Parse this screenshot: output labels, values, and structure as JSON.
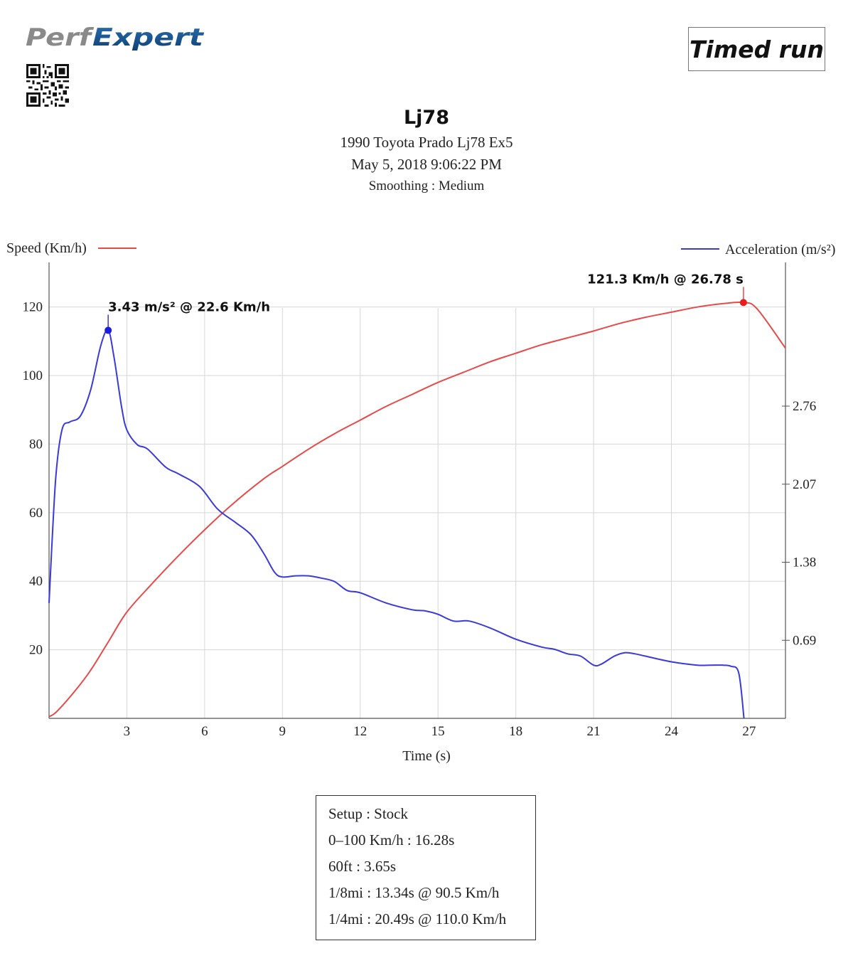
{
  "header": {
    "logo_text": "PerfExpert",
    "badge": "Timed run",
    "title": "Lj78",
    "vehicle": "1990 Toyota Prado Lj78 Ex5",
    "datetime": "May 5, 2018 9:06:22 PM",
    "smoothing": "Smoothing : Medium"
  },
  "chart_data": {
    "type": "line",
    "xlabel": "Time (s)",
    "ylabel_left": "Speed (Km/h)",
    "ylabel_right": "Acceleration (m/s²)",
    "xlim": [
      0,
      28.4
    ],
    "ylim_left": [
      0,
      133
    ],
    "ylim_right": [
      0,
      4.03
    ],
    "x_ticks": [
      3,
      6,
      9,
      12,
      15,
      18,
      21,
      24,
      27
    ],
    "y_ticks_left": [
      20,
      40,
      60,
      80,
      100,
      120
    ],
    "y_ticks_right": [
      0.69,
      1.38,
      2.07,
      2.76
    ],
    "grid": true,
    "legend": [
      {
        "name": "Speed (Km/h)",
        "color": "#e84a4a",
        "position": "top-left"
      },
      {
        "name": "Acceleration (m/s²)",
        "color": "#3a3adb",
        "position": "top-right"
      }
    ],
    "series": [
      {
        "name": "Speed (Km/h)",
        "axis": "left",
        "color": "#e84a4a",
        "x": [
          0,
          0.3,
          1,
          1.6,
          2.3,
          3,
          4,
          5,
          6,
          7,
          8.3,
          9,
          10,
          11,
          12,
          13,
          14,
          15,
          16,
          17,
          18,
          19,
          20,
          21,
          22,
          23,
          24,
          25,
          26,
          26.78,
          27.3,
          28.4
        ],
        "y": [
          0.5,
          2,
          8,
          14,
          22.5,
          31,
          39.5,
          47.5,
          55,
          62,
          70,
          73.5,
          78.5,
          83,
          87,
          91,
          94.5,
          98,
          101,
          104,
          106.5,
          109,
          111,
          113,
          115.2,
          117,
          118.5,
          120,
          121,
          121.3,
          119.5,
          108
        ]
      },
      {
        "name": "Acceleration (m/s²)",
        "axis": "right",
        "color": "#3a3adb",
        "x": [
          0,
          0.25,
          0.5,
          0.8,
          1.2,
          1.6,
          2,
          2.28,
          2.5,
          2.8,
          3,
          3.4,
          3.8,
          4.5,
          5,
          5.8,
          6.5,
          7.2,
          7.8,
          8.3,
          8.7,
          9,
          9.5,
          10,
          10.5,
          11,
          11.5,
          12,
          13,
          14,
          14.5,
          15,
          15.6,
          16.2,
          17,
          18,
          19,
          19.5,
          20,
          20.5,
          21,
          21.3,
          21.8,
          22.2,
          22.6,
          23,
          24,
          25,
          25.5,
          26,
          26.3,
          26.6,
          26.8
        ],
        "y": [
          1.02,
          2.1,
          2.55,
          2.62,
          2.67,
          2.9,
          3.3,
          3.43,
          3.2,
          2.75,
          2.55,
          2.42,
          2.38,
          2.22,
          2.16,
          2.05,
          1.85,
          1.73,
          1.62,
          1.45,
          1.29,
          1.25,
          1.26,
          1.26,
          1.24,
          1.21,
          1.13,
          1.11,
          1.02,
          0.96,
          0.95,
          0.92,
          0.86,
          0.86,
          0.8,
          0.7,
          0.63,
          0.61,
          0.57,
          0.55,
          0.47,
          0.48,
          0.55,
          0.58,
          0.57,
          0.55,
          0.5,
          0.47,
          0.47,
          0.47,
          0.46,
          0.4,
          0.0
        ]
      }
    ],
    "annotations": [
      {
        "series": "Speed (Km/h)",
        "x": 26.78,
        "y": 121.3,
        "text": "121.3 Km/h @ 26.78 s"
      },
      {
        "series": "Acceleration (m/s²)",
        "x": 2.28,
        "y": 3.43,
        "text": "3.43 m/s² @ 22.6 Km/h"
      }
    ]
  },
  "stats": {
    "setup": "Setup : Stock",
    "zero_to_100": "0–100 Km/h : 16.28s",
    "sixty_ft": "60ft : 3.65s",
    "eighth_mile": "1/8mi : 13.34s @ 90.5 Km/h",
    "quarter_mile": "1/4mi : 20.49s @ 110.0 Km/h"
  }
}
